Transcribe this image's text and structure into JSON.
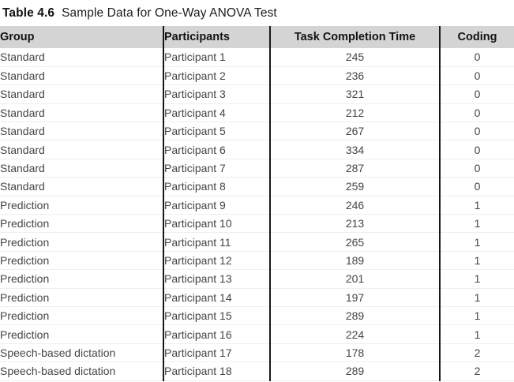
{
  "caption": {
    "label": "Table 4.6",
    "text": "Sample Data for One-Way ANOVA Test"
  },
  "table": {
    "columns": [
      "Group",
      "Participants",
      "Task Completion Time",
      "Coding"
    ],
    "rows": [
      {
        "group": "Standard",
        "participant": "Participant 1",
        "time": "245",
        "coding": "0"
      },
      {
        "group": "Standard",
        "participant": "Participant 2",
        "time": "236",
        "coding": "0"
      },
      {
        "group": "Standard",
        "participant": "Participant 3",
        "time": "321",
        "coding": "0"
      },
      {
        "group": "Standard",
        "participant": "Participant 4",
        "time": "212",
        "coding": "0"
      },
      {
        "group": "Standard",
        "participant": "Participant 5",
        "time": "267",
        "coding": "0"
      },
      {
        "group": "Standard",
        "participant": "Participant 6",
        "time": "334",
        "coding": "0"
      },
      {
        "group": "Standard",
        "participant": "Participant 7",
        "time": "287",
        "coding": "0"
      },
      {
        "group": "Standard",
        "participant": "Participant 8",
        "time": "259",
        "coding": "0"
      },
      {
        "group": "Prediction",
        "participant": "Participant 9",
        "time": "246",
        "coding": "1"
      },
      {
        "group": "Prediction",
        "participant": "Participant 10",
        "time": "213",
        "coding": "1"
      },
      {
        "group": "Prediction",
        "participant": "Participant 11",
        "time": "265",
        "coding": "1"
      },
      {
        "group": "Prediction",
        "participant": "Participant 12",
        "time": "189",
        "coding": "1"
      },
      {
        "group": "Prediction",
        "participant": "Participant 13",
        "time": "201",
        "coding": "1"
      },
      {
        "group": "Prediction",
        "participant": "Participant 14",
        "time": "197",
        "coding": "1"
      },
      {
        "group": "Prediction",
        "participant": "Participant 15",
        "time": "289",
        "coding": "1"
      },
      {
        "group": "Prediction",
        "participant": "Participant 16",
        "time": "224",
        "coding": "1"
      },
      {
        "group": "Speech-based dictation",
        "participant": "Participant 17",
        "time": "178",
        "coding": "2"
      },
      {
        "group": "Speech-based dictation",
        "participant": "Participant 18",
        "time": "289",
        "coding": "2"
      }
    ]
  },
  "colors": {
    "header_bg": "#d4d4d4",
    "divider": "#181818",
    "body_text": "#454545"
  }
}
